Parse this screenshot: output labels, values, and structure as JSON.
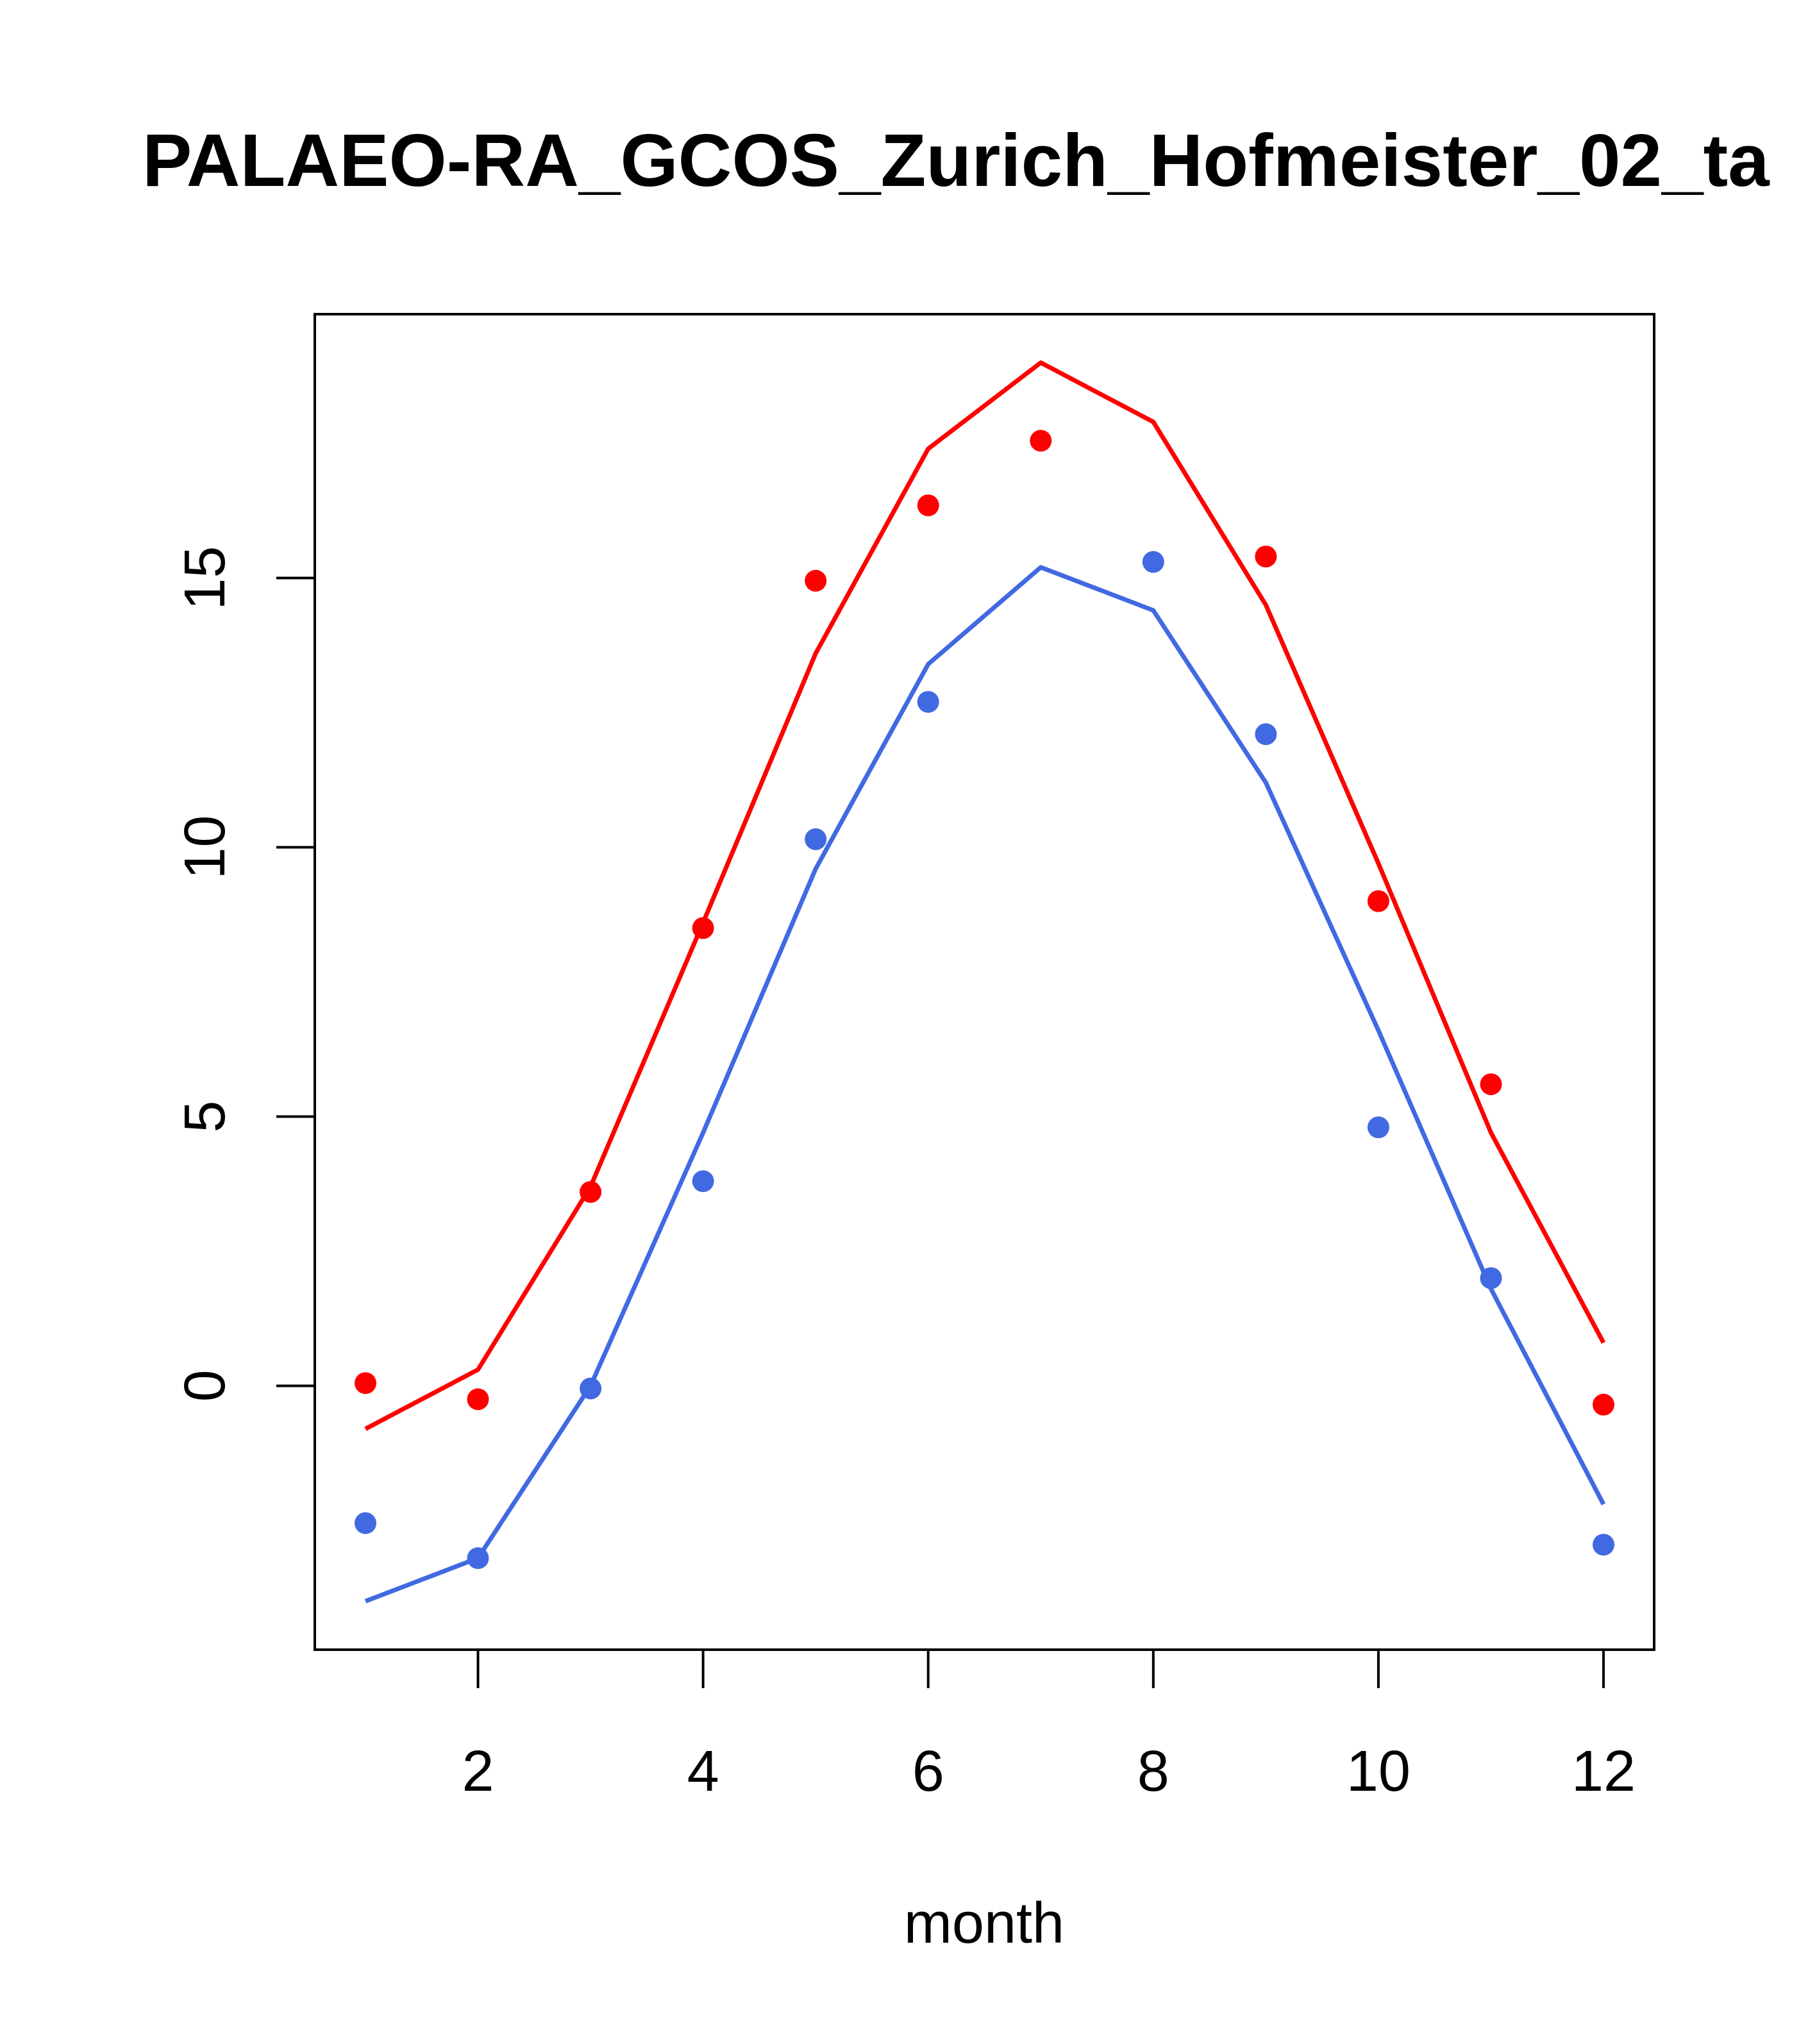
{
  "chart_data": {
    "type": "line",
    "title": "PALAEO-RA_GCOS_Zurich_Hofmeister_02_ta",
    "xlabel": "month",
    "ylabel": "",
    "xlim": [
      0.55,
      12.45
    ],
    "ylim": [
      -4.9,
      19.9
    ],
    "x_ticks": [
      2,
      4,
      6,
      8,
      10,
      12
    ],
    "y_ticks": [
      0,
      5,
      10,
      15
    ],
    "grid": false,
    "x": [
      1,
      2,
      3,
      4,
      5,
      6,
      7,
      8,
      9,
      10,
      11,
      12
    ],
    "series": [
      {
        "color": "#ff0000",
        "style": "line",
        "values": [
          -0.8,
          0.3,
          3.7,
          8.6,
          13.6,
          17.4,
          19.0,
          17.9,
          14.5,
          9.7,
          4.7,
          0.8
        ]
      },
      {
        "color": "#ff0000",
        "style": "points",
        "values": [
          0.05,
          -0.25,
          3.6,
          8.5,
          14.95,
          16.35,
          17.55,
          null,
          15.4,
          9.0,
          5.6,
          -0.35
        ]
      },
      {
        "color": "#4169e1",
        "style": "line",
        "values": [
          -4.0,
          -3.2,
          0.0,
          4.7,
          9.6,
          13.4,
          15.2,
          14.4,
          11.2,
          6.6,
          1.8,
          -2.2
        ]
      },
      {
        "color": "#4169e1",
        "style": "points",
        "values": [
          -2.55,
          -3.2,
          -0.05,
          3.8,
          10.15,
          12.7,
          null,
          15.3,
          12.1,
          4.8,
          2.0,
          -2.95
        ]
      }
    ]
  }
}
